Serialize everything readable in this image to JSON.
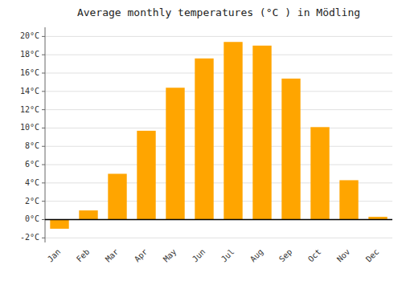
{
  "chart_data": {
    "type": "bar",
    "title": "Average monthly temperatures (°C ) in Mödling",
    "categories": [
      "Jan",
      "Feb",
      "Mar",
      "Apr",
      "May",
      "Jun",
      "Jul",
      "Aug",
      "Sep",
      "Oct",
      "Nov",
      "Dec"
    ],
    "values": [
      -1.0,
      1.0,
      5.0,
      9.7,
      14.4,
      17.6,
      19.4,
      19.0,
      15.4,
      10.1,
      4.3,
      0.3
    ],
    "color": "#FFA500",
    "ylim": [
      -2.5,
      21
    ],
    "yticks": [
      {
        "value": -2,
        "label": "-2°C"
      },
      {
        "value": 0,
        "label": "0°C"
      },
      {
        "value": 2,
        "label": "2°C"
      },
      {
        "value": 4,
        "label": "4°C"
      },
      {
        "value": 6,
        "label": "6°C"
      },
      {
        "value": 8,
        "label": "8°C"
      },
      {
        "value": 10,
        "label": "10°C"
      },
      {
        "value": 12,
        "label": "12°C"
      },
      {
        "value": 14,
        "label": "14°C"
      },
      {
        "value": 16,
        "label": "16°C"
      },
      {
        "value": 18,
        "label": "18°C"
      },
      {
        "value": 20,
        "label": "20°C"
      }
    ],
    "grid": true
  }
}
